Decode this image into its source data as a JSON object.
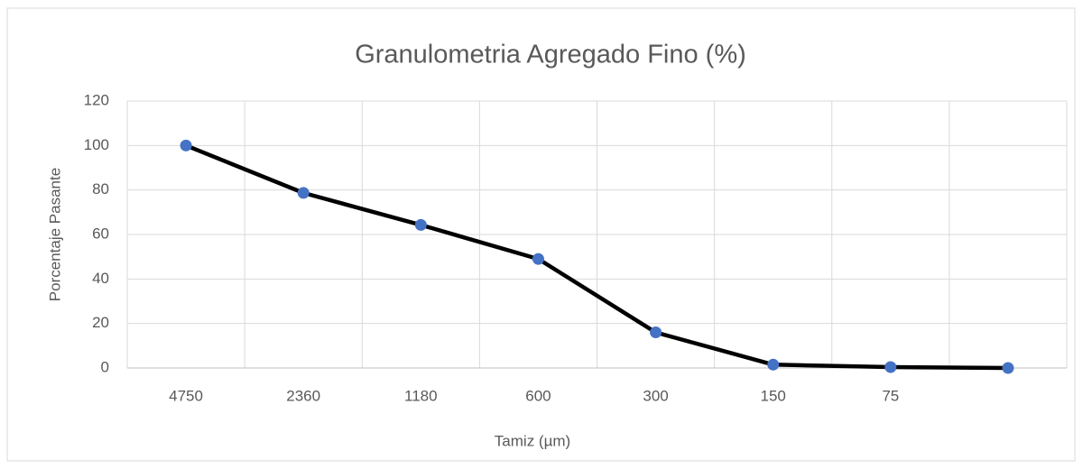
{
  "chart_data": {
    "type": "line",
    "title": "Granulometria Agregado Fino (%)",
    "x_label": "Tamiz (µm)",
    "y_label": "Porcentaje Pasante",
    "categories": [
      "4750",
      "2360",
      "1180",
      "600",
      "300",
      "150",
      "75",
      null
    ],
    "series": [
      {
        "name": "Porcentaje Pasante",
        "color": "#000000",
        "marker_color": "#4472c4",
        "values": [
          100,
          78.7,
          64.3,
          49,
          16,
          1.5,
          0.4,
          0
        ]
      }
    ],
    "ylim": [
      0,
      120
    ],
    "yticks": [
      0,
      20,
      40,
      60,
      80,
      100,
      120
    ],
    "grid": true
  }
}
